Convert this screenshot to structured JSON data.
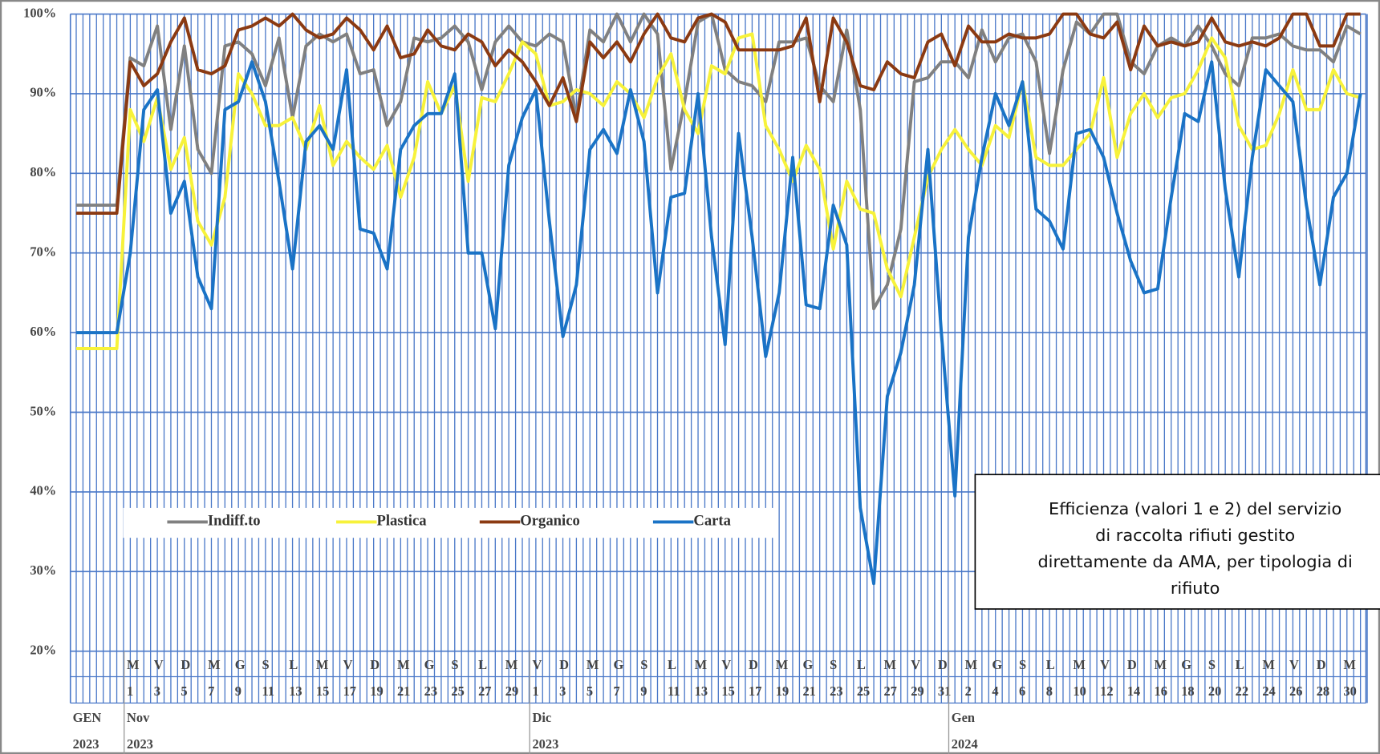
{
  "chart_data": {
    "type": "line",
    "note": [
      "Efficienza (valori 1 e 2) del servizio",
      "di raccolta rifiuti gestito",
      "direttamente da AMA, per tipologia di",
      "rifiuto"
    ],
    "categories": [
      null,
      null,
      null,
      null,
      "1",
      null,
      "3",
      null,
      "5",
      null,
      "7",
      null,
      "9",
      null,
      "11",
      null,
      "13",
      null,
      "15",
      null,
      "17",
      null,
      "19",
      null,
      "21",
      null,
      "23",
      null,
      "25",
      null,
      "27",
      null,
      "29",
      null,
      "1",
      null,
      "3",
      null,
      "5",
      null,
      "7",
      null,
      "9",
      null,
      "11",
      null,
      "13",
      null,
      "15",
      null,
      "17",
      null,
      "19",
      null,
      "21",
      null,
      "23",
      null,
      "25",
      null,
      "27",
      null,
      "29",
      null,
      "31",
      null,
      "2",
      null,
      "4",
      null,
      "6",
      null,
      "8",
      null,
      "10",
      null,
      "12",
      null,
      "14",
      null,
      "16",
      null,
      "18",
      null,
      "20",
      null,
      "22",
      null,
      "24",
      null,
      "26",
      null,
      "28",
      null,
      "30",
      null
    ],
    "weekdays": [
      null,
      null,
      null,
      null,
      "M",
      null,
      "V",
      null,
      "D",
      null,
      "M",
      null,
      "G",
      null,
      "S",
      null,
      "L",
      null,
      "M",
      null,
      "V",
      null,
      "D",
      null,
      "M",
      null,
      "G",
      null,
      "S",
      null,
      "L",
      null,
      "M",
      null,
      "V",
      null,
      "D",
      null,
      "M",
      null,
      "G",
      null,
      "S",
      null,
      "L",
      null,
      "M",
      null,
      "V",
      null,
      "D",
      null,
      "M",
      null,
      "G",
      null,
      "S",
      null,
      "L",
      null,
      "M",
      null,
      "V",
      null,
      "D",
      null,
      "M",
      null,
      "G",
      null,
      "S",
      null,
      "L",
      null,
      "M",
      null,
      "V",
      null,
      "D",
      null,
      "M",
      null,
      "G",
      null,
      "S",
      null,
      "L",
      null,
      "M",
      null,
      "V",
      null,
      "D",
      null,
      "M",
      null
    ],
    "months": [
      "GEN",
      null,
      null,
      null,
      "Nov",
      null,
      null,
      null,
      null,
      null,
      null,
      null,
      null,
      null,
      null,
      null,
      null,
      null,
      null,
      null,
      null,
      null,
      null,
      null,
      null,
      null,
      null,
      null,
      null,
      null,
      null,
      null,
      null,
      null,
      "Dic",
      null,
      null,
      null,
      null,
      null,
      null,
      null,
      null,
      null,
      null,
      null,
      null,
      null,
      null,
      null,
      null,
      null,
      null,
      null,
      null,
      null,
      null,
      null,
      null,
      null,
      null,
      null,
      null,
      null,
      null,
      "Gen",
      null,
      null,
      null,
      null,
      null,
      null,
      null,
      null,
      null,
      null,
      null,
      null,
      null,
      null,
      null,
      null,
      null,
      null,
      null,
      null,
      null,
      null,
      null,
      null,
      null,
      null,
      null,
      null,
      null,
      null
    ],
    "years": [
      "2023",
      null,
      null,
      null,
      "2023",
      null,
      null,
      null,
      null,
      null,
      null,
      null,
      null,
      null,
      null,
      null,
      null,
      null,
      null,
      null,
      null,
      null,
      null,
      null,
      null,
      null,
      null,
      null,
      null,
      null,
      null,
      null,
      null,
      null,
      "2023",
      null,
      null,
      null,
      null,
      null,
      null,
      null,
      null,
      null,
      null,
      null,
      null,
      null,
      null,
      null,
      null,
      null,
      null,
      null,
      null,
      null,
      null,
      null,
      null,
      null,
      null,
      null,
      null,
      null,
      null,
      "2024",
      null,
      null,
      null,
      null,
      null,
      null,
      null,
      null,
      null,
      null,
      null,
      null,
      null,
      null,
      null,
      null,
      null,
      null,
      null,
      null,
      null,
      null,
      null,
      null,
      null,
      null,
      null,
      null,
      null,
      null
    ],
    "ylim": [
      20,
      100
    ],
    "yticks": [
      {
        "value": 20,
        "label": "20%"
      },
      {
        "value": 30,
        "label": "30%"
      },
      {
        "value": 40,
        "label": "40%"
      },
      {
        "value": 50,
        "label": "50%"
      },
      {
        "value": 60,
        "label": "60%"
      },
      {
        "value": 70,
        "label": "70%"
      },
      {
        "value": 80,
        "label": "80%"
      },
      {
        "value": 90,
        "label": "90%"
      },
      {
        "value": 100,
        "label": "100%"
      }
    ],
    "grid": true,
    "series": [
      {
        "name": "Indiff.to",
        "color": "#808080",
        "values": [
          76,
          76,
          76,
          76,
          94.5,
          93.5,
          98.5,
          85.5,
          96,
          83,
          80,
          96,
          96.5,
          95,
          91,
          97,
          87,
          96,
          97.5,
          96.5,
          97.5,
          92.5,
          93,
          86,
          89,
          97,
          96.5,
          97,
          98.5,
          96.5,
          90.5,
          96.5,
          98.5,
          96.5,
          96,
          97.5,
          96.5,
          87,
          98,
          96.5,
          100,
          96.5,
          100,
          97.5,
          80.5,
          89,
          99,
          100,
          93,
          91.5,
          91,
          89,
          96.5,
          96.5,
          97,
          91,
          89,
          98,
          88,
          63,
          66,
          73,
          91.5,
          92,
          94,
          94,
          92,
          98,
          94,
          97,
          97.5,
          94,
          82.5,
          93,
          99,
          97.5,
          100,
          100,
          94,
          92.5,
          96,
          97,
          96,
          98.5,
          96,
          92.5,
          91,
          97,
          97,
          97.5,
          96,
          95.5,
          95.5,
          94,
          98.5,
          97.5
        ]
      },
      {
        "name": "Plastica",
        "color": "#f7f23a",
        "values": [
          58,
          58,
          58,
          58,
          88,
          84,
          89.5,
          80.5,
          84.5,
          74,
          71,
          77,
          92.5,
          90,
          86,
          86,
          87,
          83,
          88.5,
          81,
          84,
          82,
          80.5,
          83.5,
          77,
          82,
          91.5,
          87.5,
          91,
          79,
          89.5,
          89,
          92.5,
          96.5,
          95,
          88.5,
          89,
          90.5,
          90,
          88.5,
          91.5,
          90,
          87,
          92,
          95,
          88,
          85,
          93.5,
          92.5,
          97,
          97.5,
          86,
          83,
          79,
          83.5,
          80.5,
          70.5,
          79,
          75.5,
          75,
          68,
          64.5,
          72,
          79.5,
          83,
          85.5,
          83,
          81,
          86,
          84.5,
          91.5,
          82,
          81,
          81,
          83,
          85,
          92,
          82,
          87.5,
          90,
          87,
          89.5,
          90,
          93,
          97,
          94.5,
          86,
          83,
          83.5,
          87.5,
          93,
          88,
          88,
          93,
          90,
          89.5
        ]
      },
      {
        "name": "Organico",
        "color": "#8b3a12",
        "values": [
          75,
          75,
          75,
          75,
          94,
          91,
          92.5,
          96.5,
          99.5,
          93,
          92.5,
          93.5,
          98,
          98.5,
          99.5,
          98.5,
          100,
          98,
          97,
          97.5,
          99.5,
          98,
          95.5,
          98.5,
          94.5,
          95,
          98,
          96,
          95.5,
          97.5,
          96.5,
          93.5,
          95.5,
          94,
          91.5,
          88.5,
          92,
          86.5,
          96.5,
          94.5,
          96.5,
          94,
          97.5,
          100,
          97,
          96.5,
          99.5,
          100,
          99,
          95.5,
          95.5,
          95.5,
          95.5,
          96,
          99.5,
          89,
          99.5,
          96.5,
          91,
          90.5,
          94,
          92.5,
          92,
          96.5,
          97.5,
          93.5,
          98.5,
          96.5,
          96.5,
          97.5,
          97,
          97,
          97.5,
          100,
          100,
          97.5,
          97,
          99,
          93,
          98.5,
          96,
          96.5,
          96,
          96.5,
          99.5,
          96.5,
          96,
          96.5,
          96,
          97,
          100,
          100,
          96,
          96,
          100,
          100
        ]
      },
      {
        "name": "Carta",
        "color": "#1a73c6",
        "values": [
          60,
          60,
          60,
          60,
          70,
          88,
          90.5,
          75,
          79,
          67,
          63,
          88,
          89,
          94,
          89,
          79,
          68,
          84,
          86,
          83,
          93,
          73,
          72.5,
          68,
          83,
          86,
          87.5,
          87.5,
          92.5,
          70,
          70,
          60.5,
          81,
          87,
          90.5,
          74,
          59.5,
          66,
          83,
          85.5,
          82.5,
          90.5,
          84,
          65,
          77,
          77.5,
          90,
          72,
          58.5,
          85,
          72,
          57,
          65,
          82,
          63.5,
          63,
          76,
          71,
          38,
          28.5,
          52,
          57.5,
          66,
          83,
          60,
          39.5,
          72,
          82,
          90,
          86,
          91.5,
          75.5,
          74,
          70.5,
          85,
          85.5,
          82,
          75,
          69,
          65,
          65.5,
          77,
          87.5,
          86.5,
          94,
          78,
          67,
          82,
          93,
          91,
          89,
          76,
          66,
          77,
          80,
          90
        ]
      }
    ]
  }
}
